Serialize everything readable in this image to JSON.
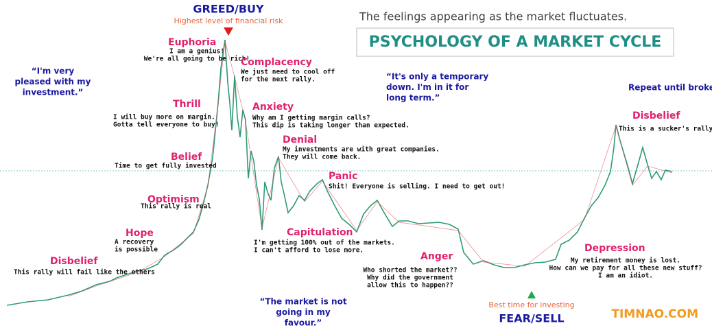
{
  "header": {
    "subtitle": "The feelings appearing as the market fluctuates.",
    "title": "PSYCHOLOGY OF A MARKET CYCLE"
  },
  "top": {
    "label": "GREED/BUY",
    "note": "Highest level of financial risk"
  },
  "bottom": {
    "label": "FEAR/SELL",
    "note": "Best time for investing"
  },
  "stages": [
    {
      "name": "Disbelief",
      "lines": [
        "This rally will fail like the others"
      ]
    },
    {
      "name": "Hope",
      "lines": [
        "A recovery",
        "is possible"
      ]
    },
    {
      "name": "Optimism",
      "lines": [
        "This rally is real"
      ]
    },
    {
      "name": "Belief",
      "lines": [
        "Time to get fully invested"
      ]
    },
    {
      "name": "Thrill",
      "lines": [
        "I will buy more on margin.",
        "Gotta tell everyone to buy!"
      ]
    },
    {
      "name": "Euphoria",
      "lines": [
        "I am a genius!",
        "We're all going to be rich!"
      ]
    },
    {
      "name": "Complacency",
      "lines": [
        "We just need to cool off",
        "for the next rally."
      ]
    },
    {
      "name": "Anxiety",
      "lines": [
        "Why am I getting margin calls?",
        "This dip is taking longer than expected."
      ]
    },
    {
      "name": "Denial",
      "lines": [
        "My investments are with great companies.",
        "They will come back."
      ]
    },
    {
      "name": "Panic",
      "lines": [
        "Shit! Everyone is selling. I need to get out!"
      ]
    },
    {
      "name": "Capitulation",
      "lines": [
        "I'm getting 100% out of the markets.",
        "I can't afford to lose more."
      ]
    },
    {
      "name": "Anger",
      "lines": [
        "Who shorted the market??",
        "Why did the government",
        "allow this to happen??"
      ]
    },
    {
      "name": "Depression",
      "lines": [
        "My retirement money is lost.",
        "How can we pay for all these new stuff?",
        "I am an idiot."
      ]
    },
    {
      "name": "Disbelief",
      "lines": [
        "This is a sucker's rally."
      ]
    }
  ],
  "quotes": [
    [
      "“I'm very",
      "pleased with my",
      "investment.”"
    ],
    [
      "“It's only a temporary",
      "down. I'm in it for",
      "long term.”"
    ],
    [
      "“The market is not",
      "going in my",
      "favour.”"
    ],
    [
      "Repeat until broke."
    ]
  ],
  "brand": "TIMNAO.COM"
}
